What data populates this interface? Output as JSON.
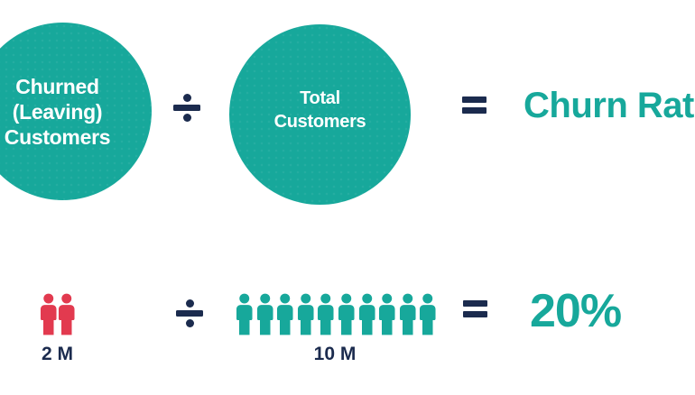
{
  "colors": {
    "teal": "#17A89B",
    "navy": "#1B2B4E",
    "red": "#E23A4F",
    "background": "#FFFFFF"
  },
  "formula_row": {
    "dividend": {
      "lines": [
        "Churned",
        "(Leaving)",
        "Customers"
      ]
    },
    "divide_symbol": "÷",
    "divisor": {
      "lines": [
        "Total",
        "Customers"
      ]
    },
    "equals_symbol": "=",
    "result": "Churn Rate"
  },
  "example_row": {
    "dividend": {
      "icon": "person-icon",
      "count": 2,
      "label": "2 M"
    },
    "divide_symbol": "÷",
    "divisor": {
      "icon": "person-icon",
      "count": 10,
      "label": "10 M"
    },
    "equals_symbol": "=",
    "result": "20%"
  }
}
